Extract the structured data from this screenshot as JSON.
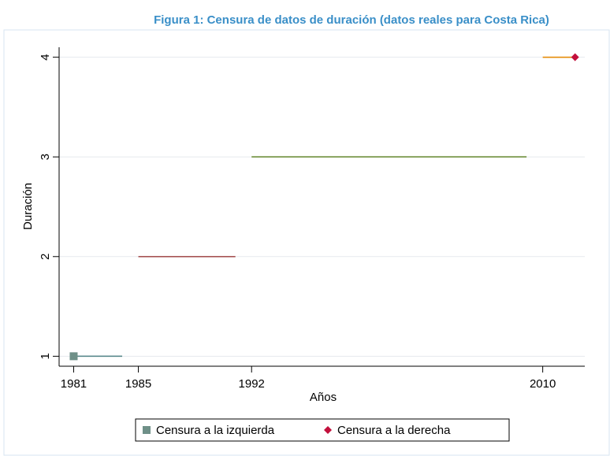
{
  "chart_data": {
    "type": "range",
    "title": "Figura 1: Censura de datos de duración (datos reales para Costa Rica)",
    "x_label": "Años",
    "y_label": "Duración",
    "segments": [
      {
        "start": 1981,
        "end": 1984,
        "y": 1,
        "color": "#5b8a8c"
      },
      {
        "start": 1985,
        "end": 1991,
        "y": 2,
        "color": "#a65454"
      },
      {
        "start": 1992,
        "end": 2009,
        "y": 3,
        "color": "#6e8f3c"
      },
      {
        "start": 2010,
        "end": 2012,
        "y": 4,
        "color": "#e58c0a"
      }
    ],
    "series": [
      {
        "name": "Censura a la izquierda",
        "color": "#6f9088",
        "marker": "square",
        "x": [
          1981
        ],
        "values": [
          1
        ]
      },
      {
        "name": "Censura a la derecha",
        "color": "#c3103c",
        "marker": "diamond",
        "x": [
          2012
        ],
        "values": [
          4
        ]
      }
    ],
    "xlim": [
      1980.1,
      2012.6
    ],
    "xticks": [
      1981,
      1985,
      1992,
      2010
    ],
    "ylim": [
      0.9,
      4.1
    ],
    "yticks": [
      1,
      2,
      3,
      4
    ],
    "grid": true
  }
}
